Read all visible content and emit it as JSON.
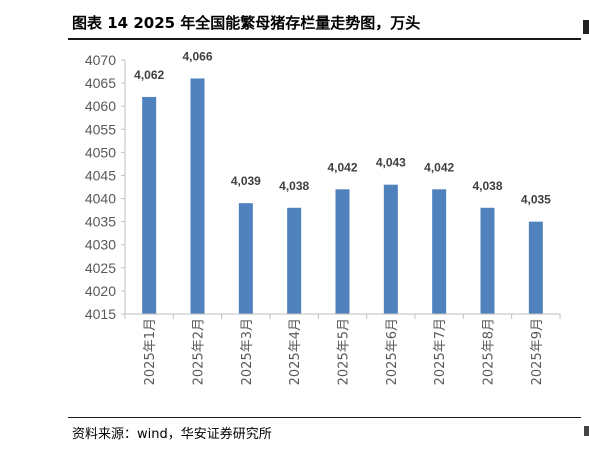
{
  "title": "图表 14 2025 年全国能繁母猪存栏量走势图，万头",
  "source": "资料来源：wind，华安证券研究所",
  "colors": {
    "bar": "#4f81bd",
    "axis": "#bfbfbf",
    "text": "#595959"
  },
  "chart_data": {
    "type": "bar",
    "title": "图表 14 2025 年全国能繁母猪存栏量走势图，万头",
    "categories": [
      "2025年1月",
      "2025年2月",
      "2025年3月",
      "2025年4月",
      "2025年5月",
      "2025年6月",
      "2025年7月",
      "2025年8月",
      "2025年9月"
    ],
    "values": [
      4062,
      4066,
      4039,
      4038,
      4042,
      4043,
      4042,
      4038,
      4035
    ],
    "value_labels": [
      "4,062",
      "4,066",
      "4,039",
      "4,038",
      "4,042",
      "4,043",
      "4,042",
      "4,038",
      "4,035"
    ],
    "ylim": [
      4015,
      4070
    ],
    "yticks": [
      4015,
      4020,
      4025,
      4030,
      4035,
      4040,
      4045,
      4050,
      4055,
      4060,
      4065,
      4070
    ],
    "xlabel": "",
    "ylabel": "",
    "grid": false,
    "legend": "none"
  }
}
